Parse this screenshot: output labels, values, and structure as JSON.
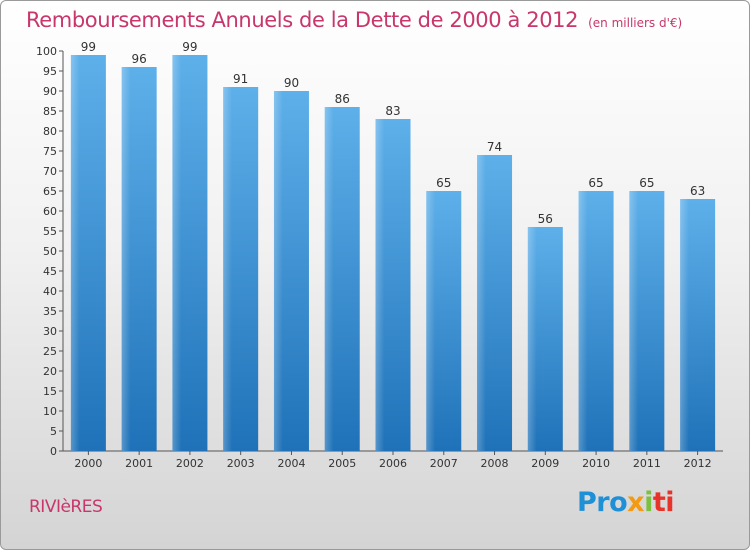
{
  "header": {
    "title": "Remboursements Annuels de la Dette de 2000 à 2012",
    "unit": "(en milliers d'€)"
  },
  "footer": {
    "commune": "RIVIèRES",
    "logo": [
      "Pro",
      "x",
      "i",
      "ti"
    ]
  },
  "colors": {
    "title": "#c8366b",
    "bar_top": "#5eb0ea",
    "bar_bottom": "#1f72b8"
  },
  "chart_data": {
    "type": "bar",
    "title": "Remboursements Annuels de la Dette de 2000 à 2012",
    "subtitle": "(en milliers d'€)",
    "xlabel": "",
    "ylabel": "",
    "categories": [
      "2000",
      "2001",
      "2002",
      "2003",
      "2004",
      "2005",
      "2006",
      "2007",
      "2008",
      "2009",
      "2010",
      "2011",
      "2012"
    ],
    "values": [
      99,
      96,
      99,
      91,
      90,
      86,
      83,
      65,
      74,
      56,
      65,
      65,
      63
    ],
    "ylim": [
      0,
      100
    ],
    "ytick_step": 5,
    "grid": false,
    "legend": "none",
    "data_labels": true
  }
}
